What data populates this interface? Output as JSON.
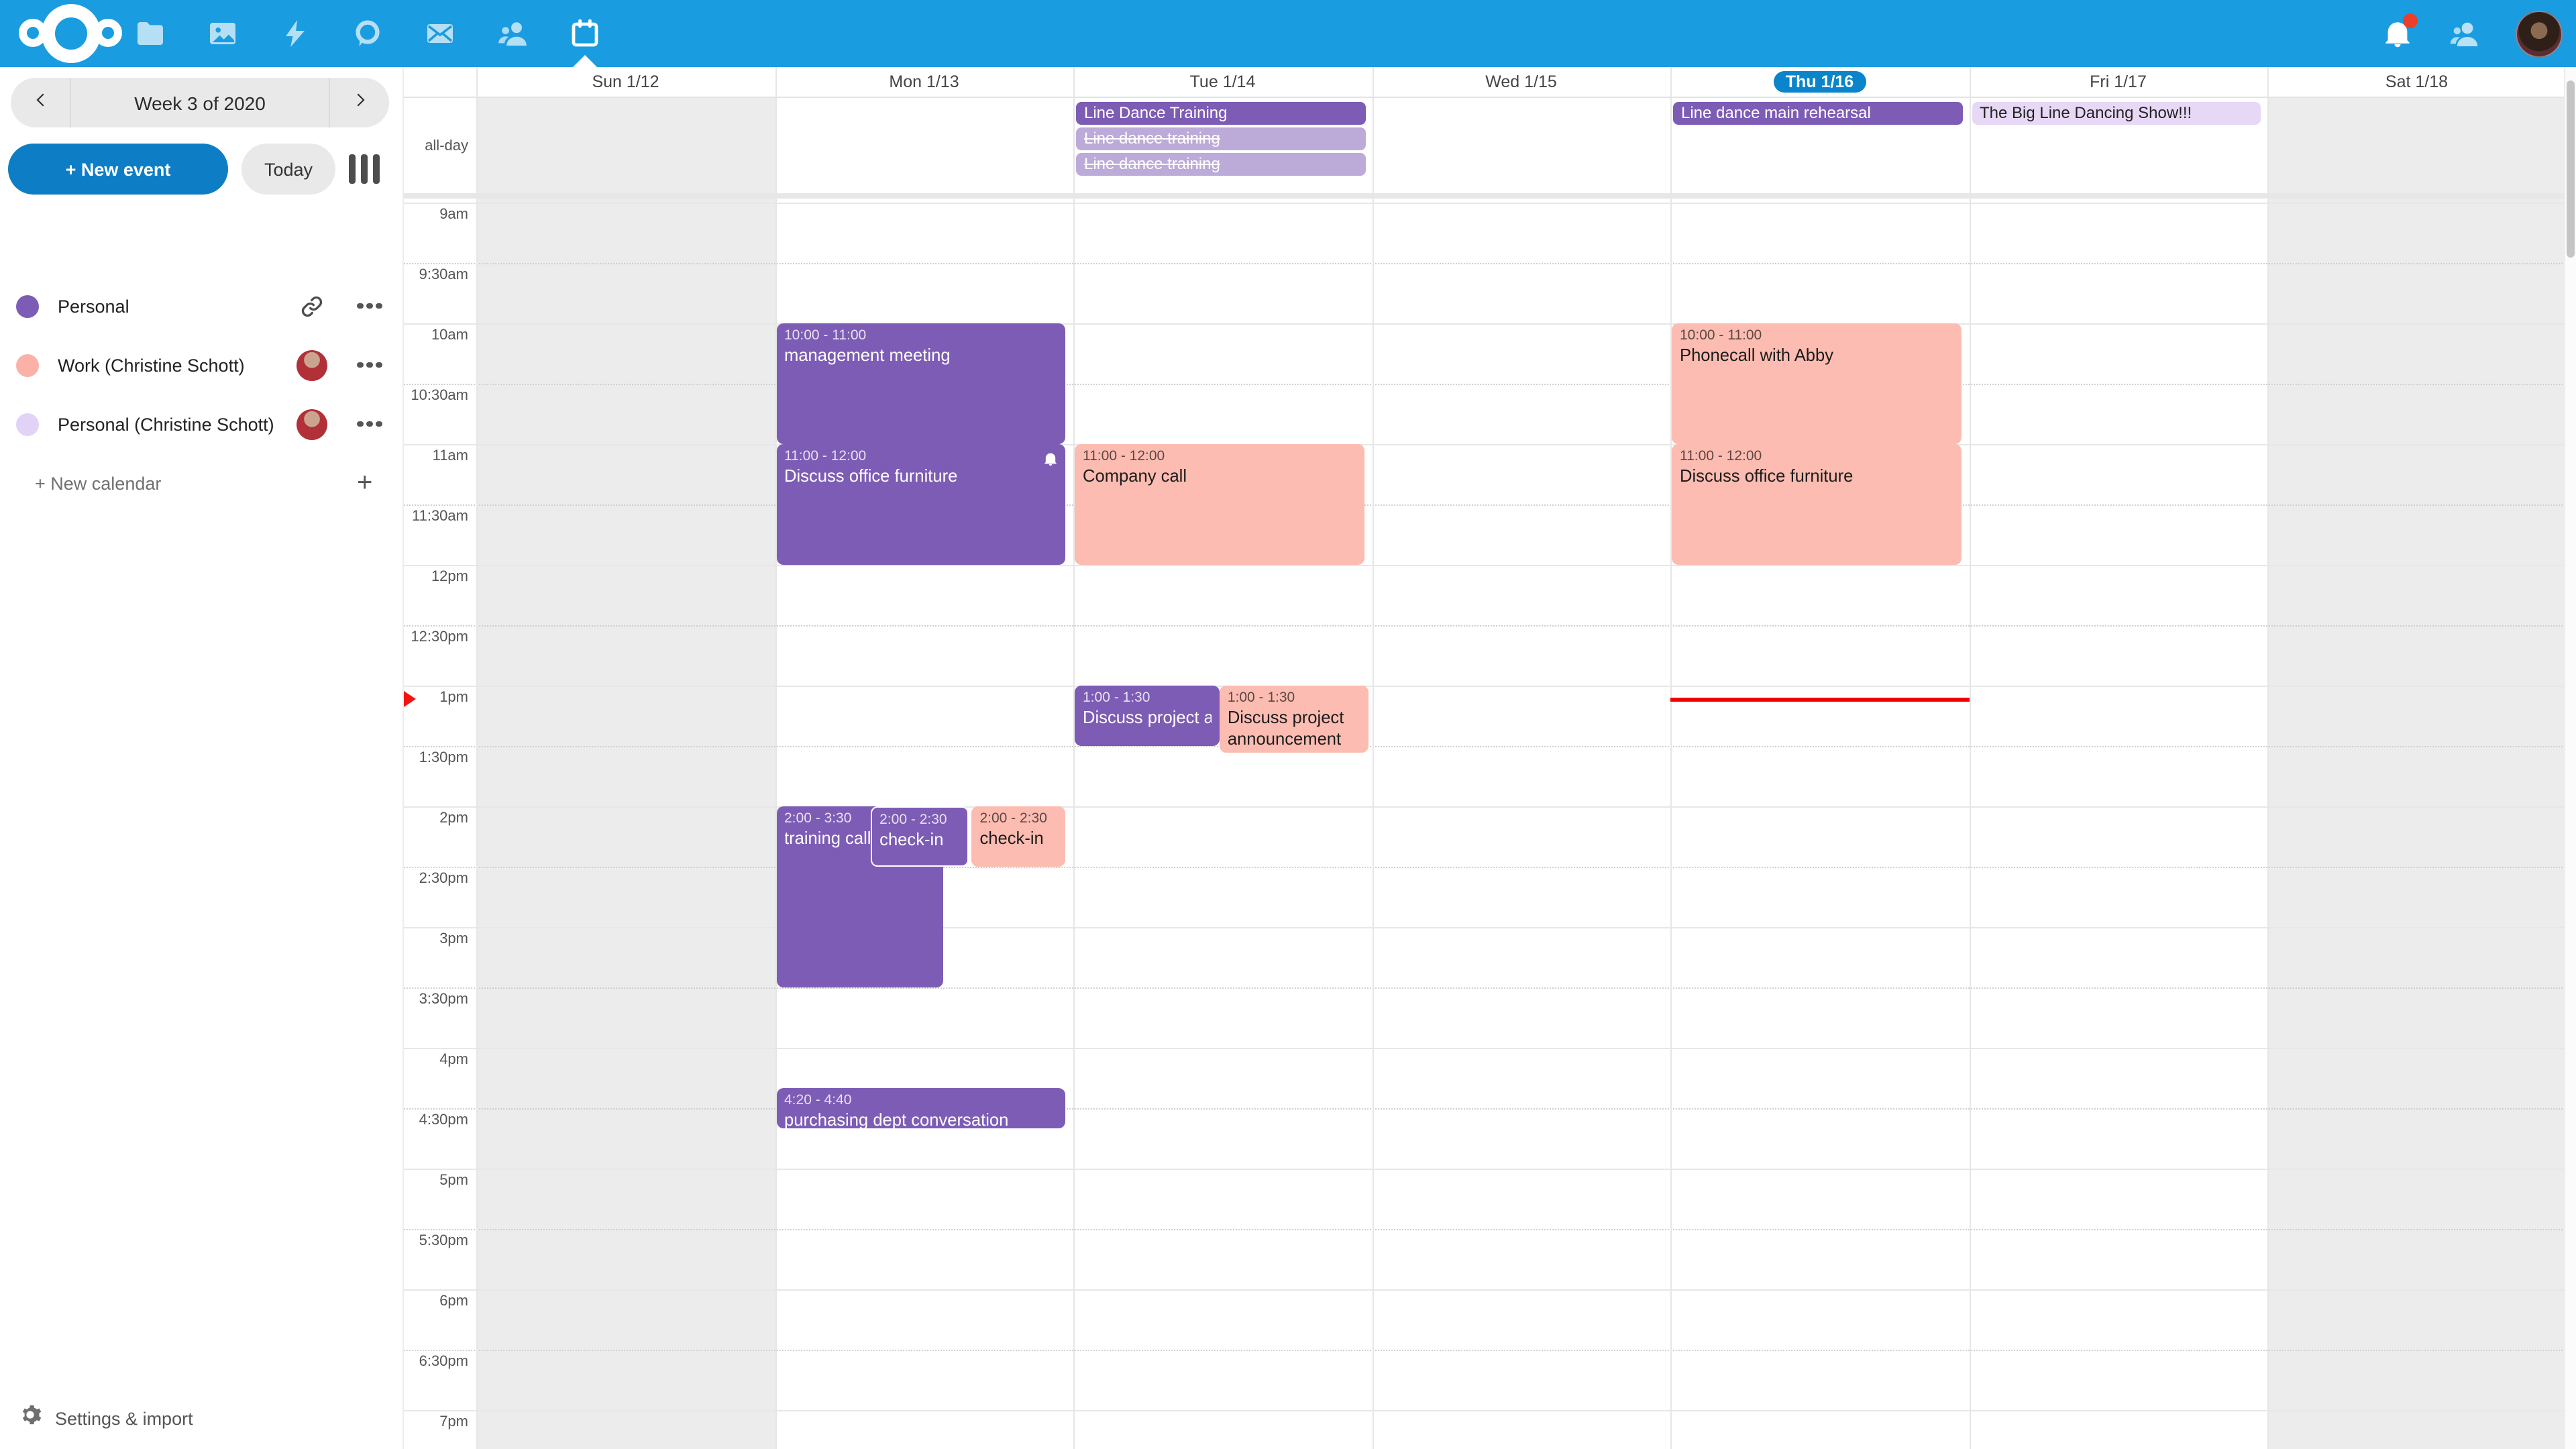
{
  "topbar": {
    "apps": [
      {
        "id": "files",
        "icon": "folder-icon"
      },
      {
        "id": "photos",
        "icon": "photos-icon"
      },
      {
        "id": "activity",
        "icon": "lightning-icon"
      },
      {
        "id": "talk",
        "icon": "talk-bubble-icon"
      },
      {
        "id": "mail",
        "icon": "mail-icon"
      },
      {
        "id": "contacts",
        "icon": "contacts-icon"
      },
      {
        "id": "calendar",
        "icon": "calendar-icon",
        "active": true
      }
    ],
    "notifications_unread": true
  },
  "sidebar": {
    "week_label": "Week 3 of 2020",
    "new_event_label": "+ New event",
    "today_label": "Today",
    "calendars": [
      {
        "label": "Personal",
        "color": "#7d5cb5",
        "trailing": "link"
      },
      {
        "label": "Work (Christine Schott)",
        "color": "#fbb1a6",
        "trailing": "avatar"
      },
      {
        "label": "Personal (Christine Schott)",
        "color": "#e2d3f6",
        "trailing": "avatar"
      }
    ],
    "new_calendar_label": "+ New calendar",
    "settings_label": "Settings & import"
  },
  "calendar": {
    "allday_label": "all-day",
    "day_headers": [
      {
        "label": "Sun 1/12",
        "weekend": true
      },
      {
        "label": "Mon 1/13"
      },
      {
        "label": "Tue 1/14"
      },
      {
        "label": "Wed 1/15"
      },
      {
        "label": "Thu 1/16",
        "today": true
      },
      {
        "label": "Fri 1/17"
      },
      {
        "label": "Sat 1/18",
        "weekend": true
      }
    ],
    "time_labels": [
      "9am",
      "9:30am",
      "10am",
      "10:30am",
      "11am",
      "11:30am",
      "12pm",
      "12:30pm",
      "1pm",
      "1:30pm",
      "2pm",
      "2:30pm",
      "3pm",
      "3:30pm",
      "4pm",
      "4:30pm",
      "5pm",
      "5:30pm",
      "6pm",
      "6:30pm",
      "7pm"
    ],
    "allday_events": [
      {
        "day": 2,
        "title": "Line Dance Training",
        "style": "solid"
      },
      {
        "day": 2,
        "title": "Line dance training",
        "style": "muted",
        "strikethrough": true
      },
      {
        "day": 2,
        "title": "Line dance training",
        "style": "muted",
        "strikethrough": true
      },
      {
        "day": 4,
        "title": "Line dance main rehearsal",
        "style": "solid"
      },
      {
        "day": 5,
        "title": "The Big Line Dancing Show!!!",
        "style": "light"
      }
    ],
    "events": [
      {
        "day": 1,
        "time": "10:00 - 11:00",
        "title": "management meeting",
        "color": "purple",
        "start": 10,
        "end": 11
      },
      {
        "day": 1,
        "time": "11:00 - 12:00",
        "title": "Discuss office furniture",
        "color": "purple",
        "start": 11,
        "end": 12,
        "alarm": true
      },
      {
        "day": 1,
        "time": "2:00 - 3:30",
        "title": "training call",
        "color": "purple",
        "start": 14,
        "end": 15.5,
        "x": 0,
        "w": 0.56
      },
      {
        "day": 1,
        "time": "2:00 - 2:30",
        "title": "check-in",
        "color": "purple",
        "start": 14,
        "end": 14.5,
        "x": 0.315,
        "w": 0.33,
        "outlined": true
      },
      {
        "day": 1,
        "time": "2:00 - 2:30",
        "title": "check-in",
        "color": "salmon",
        "start": 14,
        "end": 14.5,
        "x": 0.655,
        "w": 0.315
      },
      {
        "day": 1,
        "time": "4:20 - 4:40",
        "title": "purchasing dept conversation",
        "color": "purple",
        "start": 16.3333,
        "end": 16.6667
      },
      {
        "day": 2,
        "time": "11:00 - 12:00",
        "title": "Company call",
        "color": "salmon",
        "start": 11,
        "end": 12
      },
      {
        "day": 2,
        "time": "1:00 - 1:30",
        "title": "Discuss project announcement",
        "color": "purple",
        "start": 13,
        "end": 13.5,
        "x": 0,
        "w": 0.485
      },
      {
        "day": 2,
        "time": "1:00 - 1:30",
        "title": "Discuss project announcement",
        "color": "salmon",
        "start": 13,
        "end": 13.5,
        "x": 0.485,
        "w": 0.5,
        "wrap": true
      },
      {
        "day": 4,
        "time": "10:00 - 11:00",
        "title": "Phonecall with Abby",
        "color": "salmon",
        "start": 10,
        "end": 11
      },
      {
        "day": 4,
        "time": "11:00 - 12:00",
        "title": "Discuss office furniture",
        "color": "salmon",
        "start": 11,
        "end": 12
      }
    ],
    "now_indicator": {
      "day": 4,
      "hour": 13.1
    }
  },
  "colors": {
    "header_bg": "#1a9ce1",
    "primary": "#0d7ec6",
    "today_pill": "#0a84cb",
    "purple": "#7d5cb5",
    "purple_muted": "#bcaad8",
    "lavender": "#e7d9f6",
    "salmon": "#fcbcb1",
    "weekend": "#ececec",
    "now_red": "#f10000"
  }
}
